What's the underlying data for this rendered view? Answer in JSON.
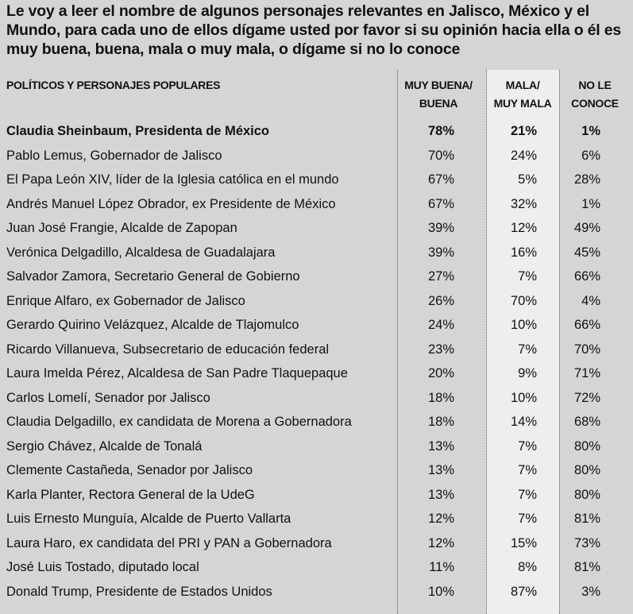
{
  "title": "Le voy a leer el nombre de algunos personajes relevantes en Jalisco, México y el Mundo, para cada uno de ellos dígame usted por favor si su opinión hacia ella o él es muy buena, buena, mala o muy mala, o dígame si no lo conoce",
  "headers": {
    "left": "POLÍTICOS Y PERSONAJES POPULARES",
    "col1_line1": "MUY BUENA/",
    "col1_line2": "BUENA",
    "col2_line1": "MALA/",
    "col2_line2": "MUY MALA",
    "col3_line1": "NO LE",
    "col3_line2": "CONOCE"
  },
  "rows": [
    {
      "name": "Claudia Sheinbaum, Presidenta de México",
      "buena": "78%",
      "mala": "21%",
      "noconoce": "1%"
    },
    {
      "name": "Pablo Lemus, Gobernador de Jalisco",
      "buena": "70%",
      "mala": "24%",
      "noconoce": "6%"
    },
    {
      "name": "El Papa León XIV, líder de la Iglesia católica en el mundo",
      "buena": "67%",
      "mala": "5%",
      "noconoce": "28%"
    },
    {
      "name": "Andrés Manuel López Obrador, ex Presidente de México",
      "buena": "67%",
      "mala": "32%",
      "noconoce": "1%"
    },
    {
      "name": "Juan José Frangie, Alcalde de Zapopan",
      "buena": "39%",
      "mala": "12%",
      "noconoce": "49%"
    },
    {
      "name": "Verónica Delgadillo, Alcaldesa de Guadalajara",
      "buena": "39%",
      "mala": "16%",
      "noconoce": "45%"
    },
    {
      "name": "Salvador Zamora, Secretario General de Gobierno",
      "buena": "27%",
      "mala": "7%",
      "noconoce": "66%"
    },
    {
      "name": "Enrique Alfaro, ex Gobernador de Jalisco",
      "buena": "26%",
      "mala": "70%",
      "noconoce": "4%"
    },
    {
      "name": "Gerardo Quirino Velázquez, Alcalde de Tlajomulco",
      "buena": "24%",
      "mala": "10%",
      "noconoce": "66%"
    },
    {
      "name": "Ricardo Villanueva, Subsecretario de educación federal",
      "buena": "23%",
      "mala": "7%",
      "noconoce": "70%"
    },
    {
      "name": "Laura Imelda Pérez, Alcaldesa de San Padre Tlaquepaque",
      "buena": "20%",
      "mala": "9%",
      "noconoce": "71%"
    },
    {
      "name": "Carlos Lomelí, Senador por Jalisco",
      "buena": "18%",
      "mala": "10%",
      "noconoce": "72%"
    },
    {
      "name": "Claudia Delgadillo, ex candidata de Morena a Gobernadora",
      "buena": "18%",
      "mala": "14%",
      "noconoce": "68%"
    },
    {
      "name": "Sergio Chávez, Alcalde de Tonalá",
      "buena": "13%",
      "mala": "7%",
      "noconoce": "80%"
    },
    {
      "name": "Clemente Castañeda, Senador por Jalisco",
      "buena": "13%",
      "mala": "7%",
      "noconoce": "80%"
    },
    {
      "name": "Karla Planter, Rectora General de la UdeG",
      "buena": "13%",
      "mala": "7%",
      "noconoce": "80%"
    },
    {
      "name": "Luis Ernesto Munguía, Alcalde de Puerto Vallarta",
      "buena": "12%",
      "mala": "7%",
      "noconoce": "81%"
    },
    {
      "name": "Laura Haro, ex candidata del PRI y PAN a Gobernadora",
      "buena": "12%",
      "mala": "15%",
      "noconoce": "73%"
    },
    {
      "name": "José Luis Tostado, diputado local",
      "buena": "11%",
      "mala": "8%",
      "noconoce": "81%"
    },
    {
      "name": "Donald Trump, Presidente de Estados Unidos",
      "buena": "10%",
      "mala": "87%",
      "noconoce": "3%"
    }
  ]
}
